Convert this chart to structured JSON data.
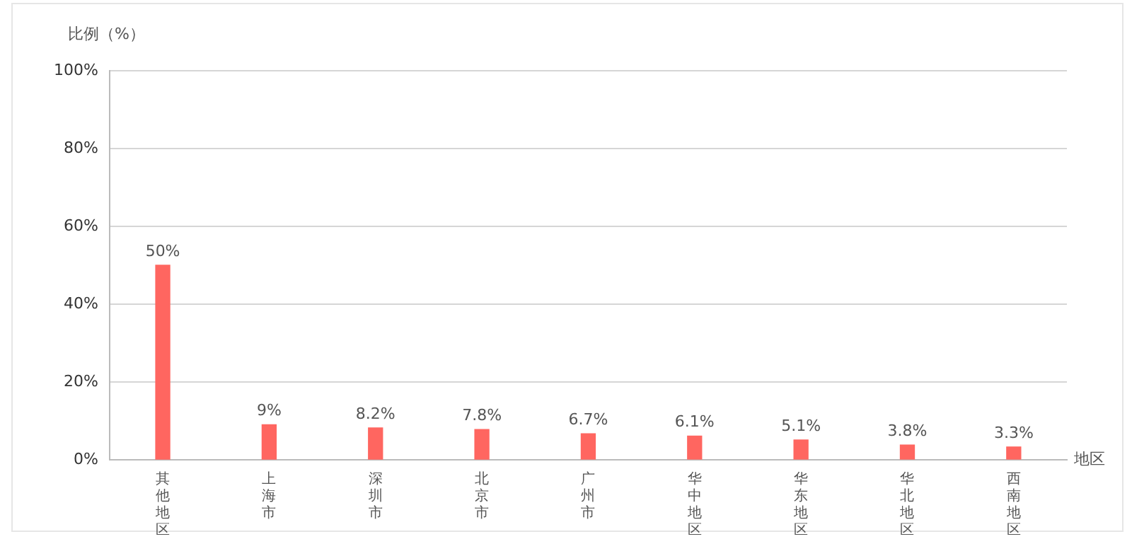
{
  "chart_data": {
    "type": "bar",
    "ylabel": "比例（%）",
    "xlabel": "地区",
    "categories": [
      "其他地区",
      "上海市",
      "深圳市",
      "北京市",
      "广州市",
      "华中地区",
      "华东地区",
      "华北地区",
      "西南地区"
    ],
    "values": [
      50,
      9,
      8.2,
      7.8,
      6.7,
      6.1,
      5.1,
      3.8,
      3.3
    ],
    "value_labels": [
      "50%",
      "9%",
      "8.2%",
      "7.8%",
      "6.7%",
      "6.1%",
      "5.1%",
      "3.8%",
      "3.3%"
    ],
    "color": "#ff6660",
    "ylim": [
      0,
      100
    ],
    "yticks": [
      {
        "value": 0,
        "label": "0%"
      },
      {
        "value": 20,
        "label": "20%"
      },
      {
        "value": 40,
        "label": "40%"
      },
      {
        "value": 60,
        "label": "60%"
      },
      {
        "value": 80,
        "label": "80%"
      },
      {
        "value": 100,
        "label": "100%"
      }
    ],
    "grid": "y",
    "legend": false
  }
}
